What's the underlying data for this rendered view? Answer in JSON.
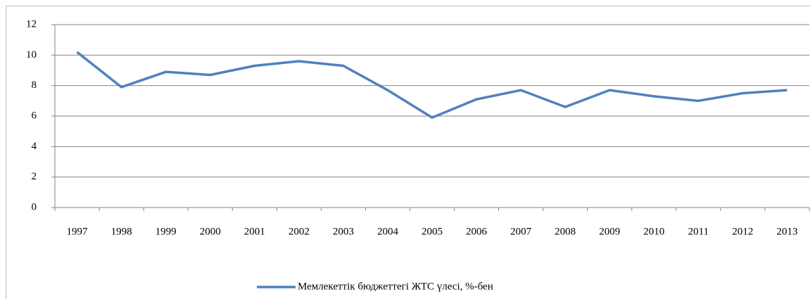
{
  "chart_data": {
    "type": "line",
    "categories": [
      "1997",
      "1998",
      "1999",
      "2000",
      "2001",
      "2002",
      "2003",
      "2004",
      "2005",
      "2006",
      "2007",
      "2008",
      "2009",
      "2010",
      "2011",
      "2012",
      "2013"
    ],
    "series": [
      {
        "name": "Мемлекеттік бюджеттегі ЖТС үлесі, %-бен",
        "color": "#4f81bd",
        "values": [
          10.2,
          7.9,
          8.9,
          8.7,
          9.3,
          9.6,
          9.3,
          7.7,
          5.9,
          7.1,
          7.7,
          6.6,
          7.7,
          7.3,
          7.0,
          7.5,
          7.7
        ]
      }
    ],
    "ylim": [
      0,
      12
    ],
    "yticks": [
      0,
      2,
      4,
      6,
      8,
      10,
      12
    ],
    "grid": true,
    "legend": "bottom"
  }
}
